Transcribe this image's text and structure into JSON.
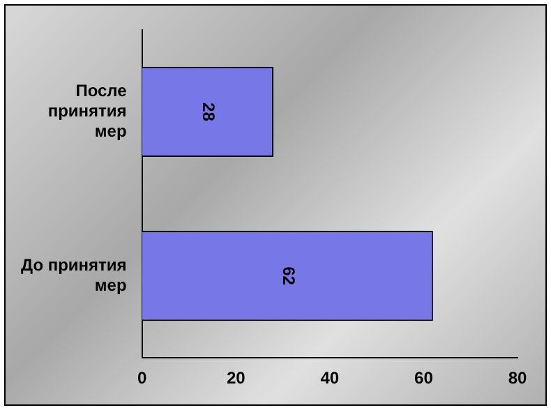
{
  "chart_data": {
    "type": "bar",
    "orientation": "horizontal",
    "categories": [
      "После принятия мер",
      "До принятия мер"
    ],
    "values": [
      28,
      62
    ],
    "color": "#7777e8",
    "xlim": [
      0,
      80
    ],
    "xticks": [
      0,
      20,
      40,
      60,
      80
    ],
    "data_labels": true,
    "grid": false,
    "legend": false
  }
}
